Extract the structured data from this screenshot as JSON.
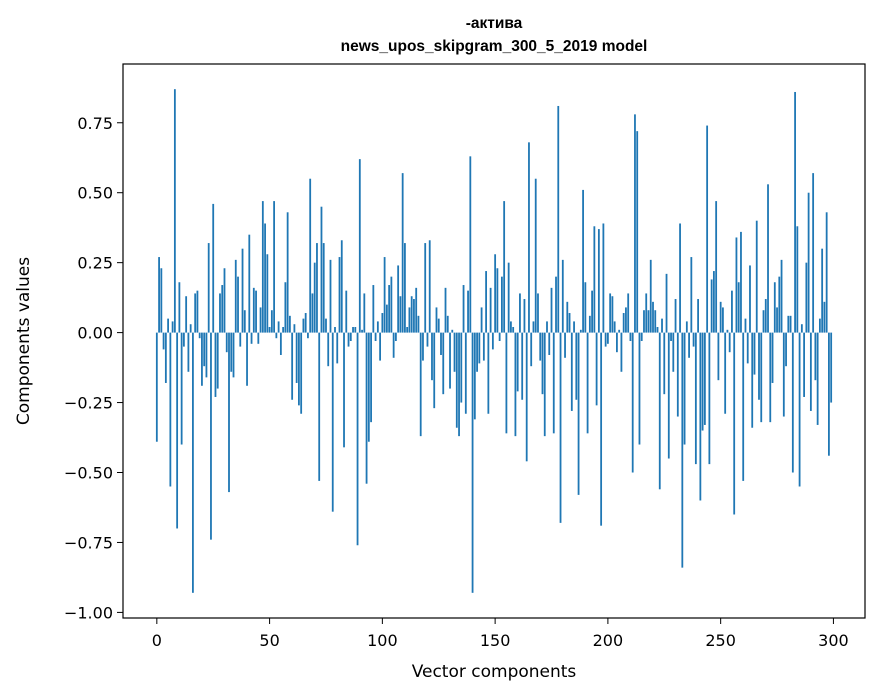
{
  "chart_data": {
    "type": "bar",
    "title_line1": "-актива",
    "title_line2": "news_upos_skipgram_300_5_2019 model",
    "xlabel": "Vector components",
    "ylabel": "Components values",
    "xlim": [
      -15,
      314
    ],
    "ylim": [
      -1.02,
      0.96
    ],
    "xticks": [
      0,
      50,
      100,
      150,
      200,
      250,
      300
    ],
    "xtick_labels": [
      "0",
      "50",
      "100",
      "150",
      "200",
      "250",
      "300"
    ],
    "yticks": [
      0.75,
      0.5,
      0.25,
      0.0,
      -0.25,
      -0.5,
      -0.75,
      -1.0
    ],
    "ytick_labels": [
      "0.75",
      "0.50",
      "0.25",
      "0.00",
      "−0.25",
      "−0.50",
      "−0.75",
      "−1.00"
    ],
    "bar_color": "#1f77b4",
    "categories_range": [
      0,
      299
    ],
    "values": [
      -0.39,
      0.27,
      0.23,
      -0.06,
      -0.18,
      0.05,
      -0.55,
      0.04,
      0.87,
      -0.7,
      0.18,
      -0.4,
      -0.05,
      0.13,
      -0.14,
      0.03,
      -0.93,
      0.14,
      0.15,
      -0.02,
      -0.19,
      -0.12,
      -0.16,
      0.32,
      -0.74,
      0.46,
      -0.23,
      -0.2,
      0.14,
      0.17,
      0.23,
      -0.07,
      -0.57,
      -0.14,
      -0.16,
      0.26,
      0.2,
      -0.05,
      0.3,
      0.08,
      -0.19,
      0.35,
      -0.04,
      0.16,
      0.15,
      -0.04,
      0.09,
      0.47,
      0.39,
      0.28,
      0.02,
      0.08,
      0.47,
      -0.02,
      0.04,
      -0.08,
      0.02,
      0.18,
      0.43,
      0.06,
      -0.24,
      0.03,
      -0.18,
      -0.26,
      -0.29,
      0.05,
      0.07,
      -0.02,
      0.55,
      0.14,
      0.25,
      0.32,
      -0.53,
      0.45,
      0.32,
      0.05,
      -0.12,
      0.26,
      -0.64,
      0.02,
      -0.11,
      0.27,
      0.33,
      -0.41,
      0.15,
      -0.05,
      -0.03,
      0.02,
      0.02,
      -0.76,
      0.62,
      0.01,
      0.14,
      -0.54,
      -0.39,
      -0.32,
      0.17,
      -0.03,
      0.04,
      -0.1,
      0.07,
      0.27,
      0.1,
      0.17,
      0.2,
      -0.09,
      -0.03,
      0.24,
      0.13,
      0.57,
      0.32,
      0.02,
      0.09,
      0.13,
      0.12,
      0.16,
      0.06,
      -0.37,
      -0.1,
      0.32,
      -0.05,
      0.33,
      -0.17,
      -0.27,
      0.09,
      0.05,
      -0.08,
      -0.22,
      0.16,
      0.06,
      -0.2,
      0.01,
      -0.14,
      -0.34,
      -0.37,
      -0.25,
      0.17,
      -0.29,
      0.15,
      0.63,
      -0.93,
      -0.31,
      -0.14,
      -0.11,
      0.09,
      -0.1,
      0.22,
      -0.29,
      0.16,
      -0.06,
      0.28,
      0.23,
      -0.03,
      0.2,
      0.47,
      -0.36,
      0.25,
      0.04,
      0.02,
      -0.37,
      -0.21,
      0.14,
      -0.24,
      0.12,
      -0.46,
      0.68,
      -0.12,
      0.04,
      0.55,
      0.14,
      -0.1,
      -0.22,
      -0.37,
      0.04,
      -0.08,
      0.16,
      -0.36,
      0.2,
      0.81,
      -0.68,
      0.26,
      -0.09,
      0.11,
      0.07,
      -0.28,
      0.04,
      -0.24,
      -0.58,
      0.01,
      0.51,
      0.18,
      -0.36,
      0.06,
      0.15,
      0.38,
      -0.26,
      0.37,
      -0.69,
      0.39,
      -0.05,
      -0.04,
      0.14,
      0.13,
      0.04,
      -0.07,
      0.01,
      -0.14,
      0.07,
      0.09,
      0.14,
      -0.03,
      -0.5,
      0.78,
      0.72,
      -0.4,
      -0.03,
      0.08,
      0.14,
      0.08,
      0.26,
      0.11,
      0.08,
      0.02,
      -0.56,
      0.05,
      -0.22,
      0.21,
      -0.45,
      -0.03,
      -0.14,
      0.12,
      -0.3,
      0.39,
      -0.84,
      -0.4,
      0.04,
      -0.09,
      0.27,
      -0.05,
      -0.47,
      0.12,
      -0.6,
      -0.35,
      -0.33,
      0.74,
      -0.47,
      0.19,
      0.22,
      0.47,
      -0.17,
      0.11,
      0.09,
      -0.29,
      0.01,
      -0.07,
      0.15,
      -0.65,
      0.34,
      0.18,
      0.36,
      -0.53,
      0.05,
      -0.11,
      0.24,
      -0.34,
      -0.15,
      0.4,
      -0.24,
      -0.32,
      0.08,
      0.12,
      0.53,
      -0.32,
      -0.18,
      0.18,
      0.09,
      0.2,
      0.26,
      -0.3,
      -0.12,
      0.06,
      0.06,
      -0.5,
      0.86,
      0.38,
      -0.55,
      0.03,
      -0.23,
      0.25,
      0.5,
      -0.28,
      0.57,
      -0.17,
      -0.33,
      0.05,
      0.3,
      0.11,
      0.43,
      -0.44,
      -0.25
    ]
  }
}
